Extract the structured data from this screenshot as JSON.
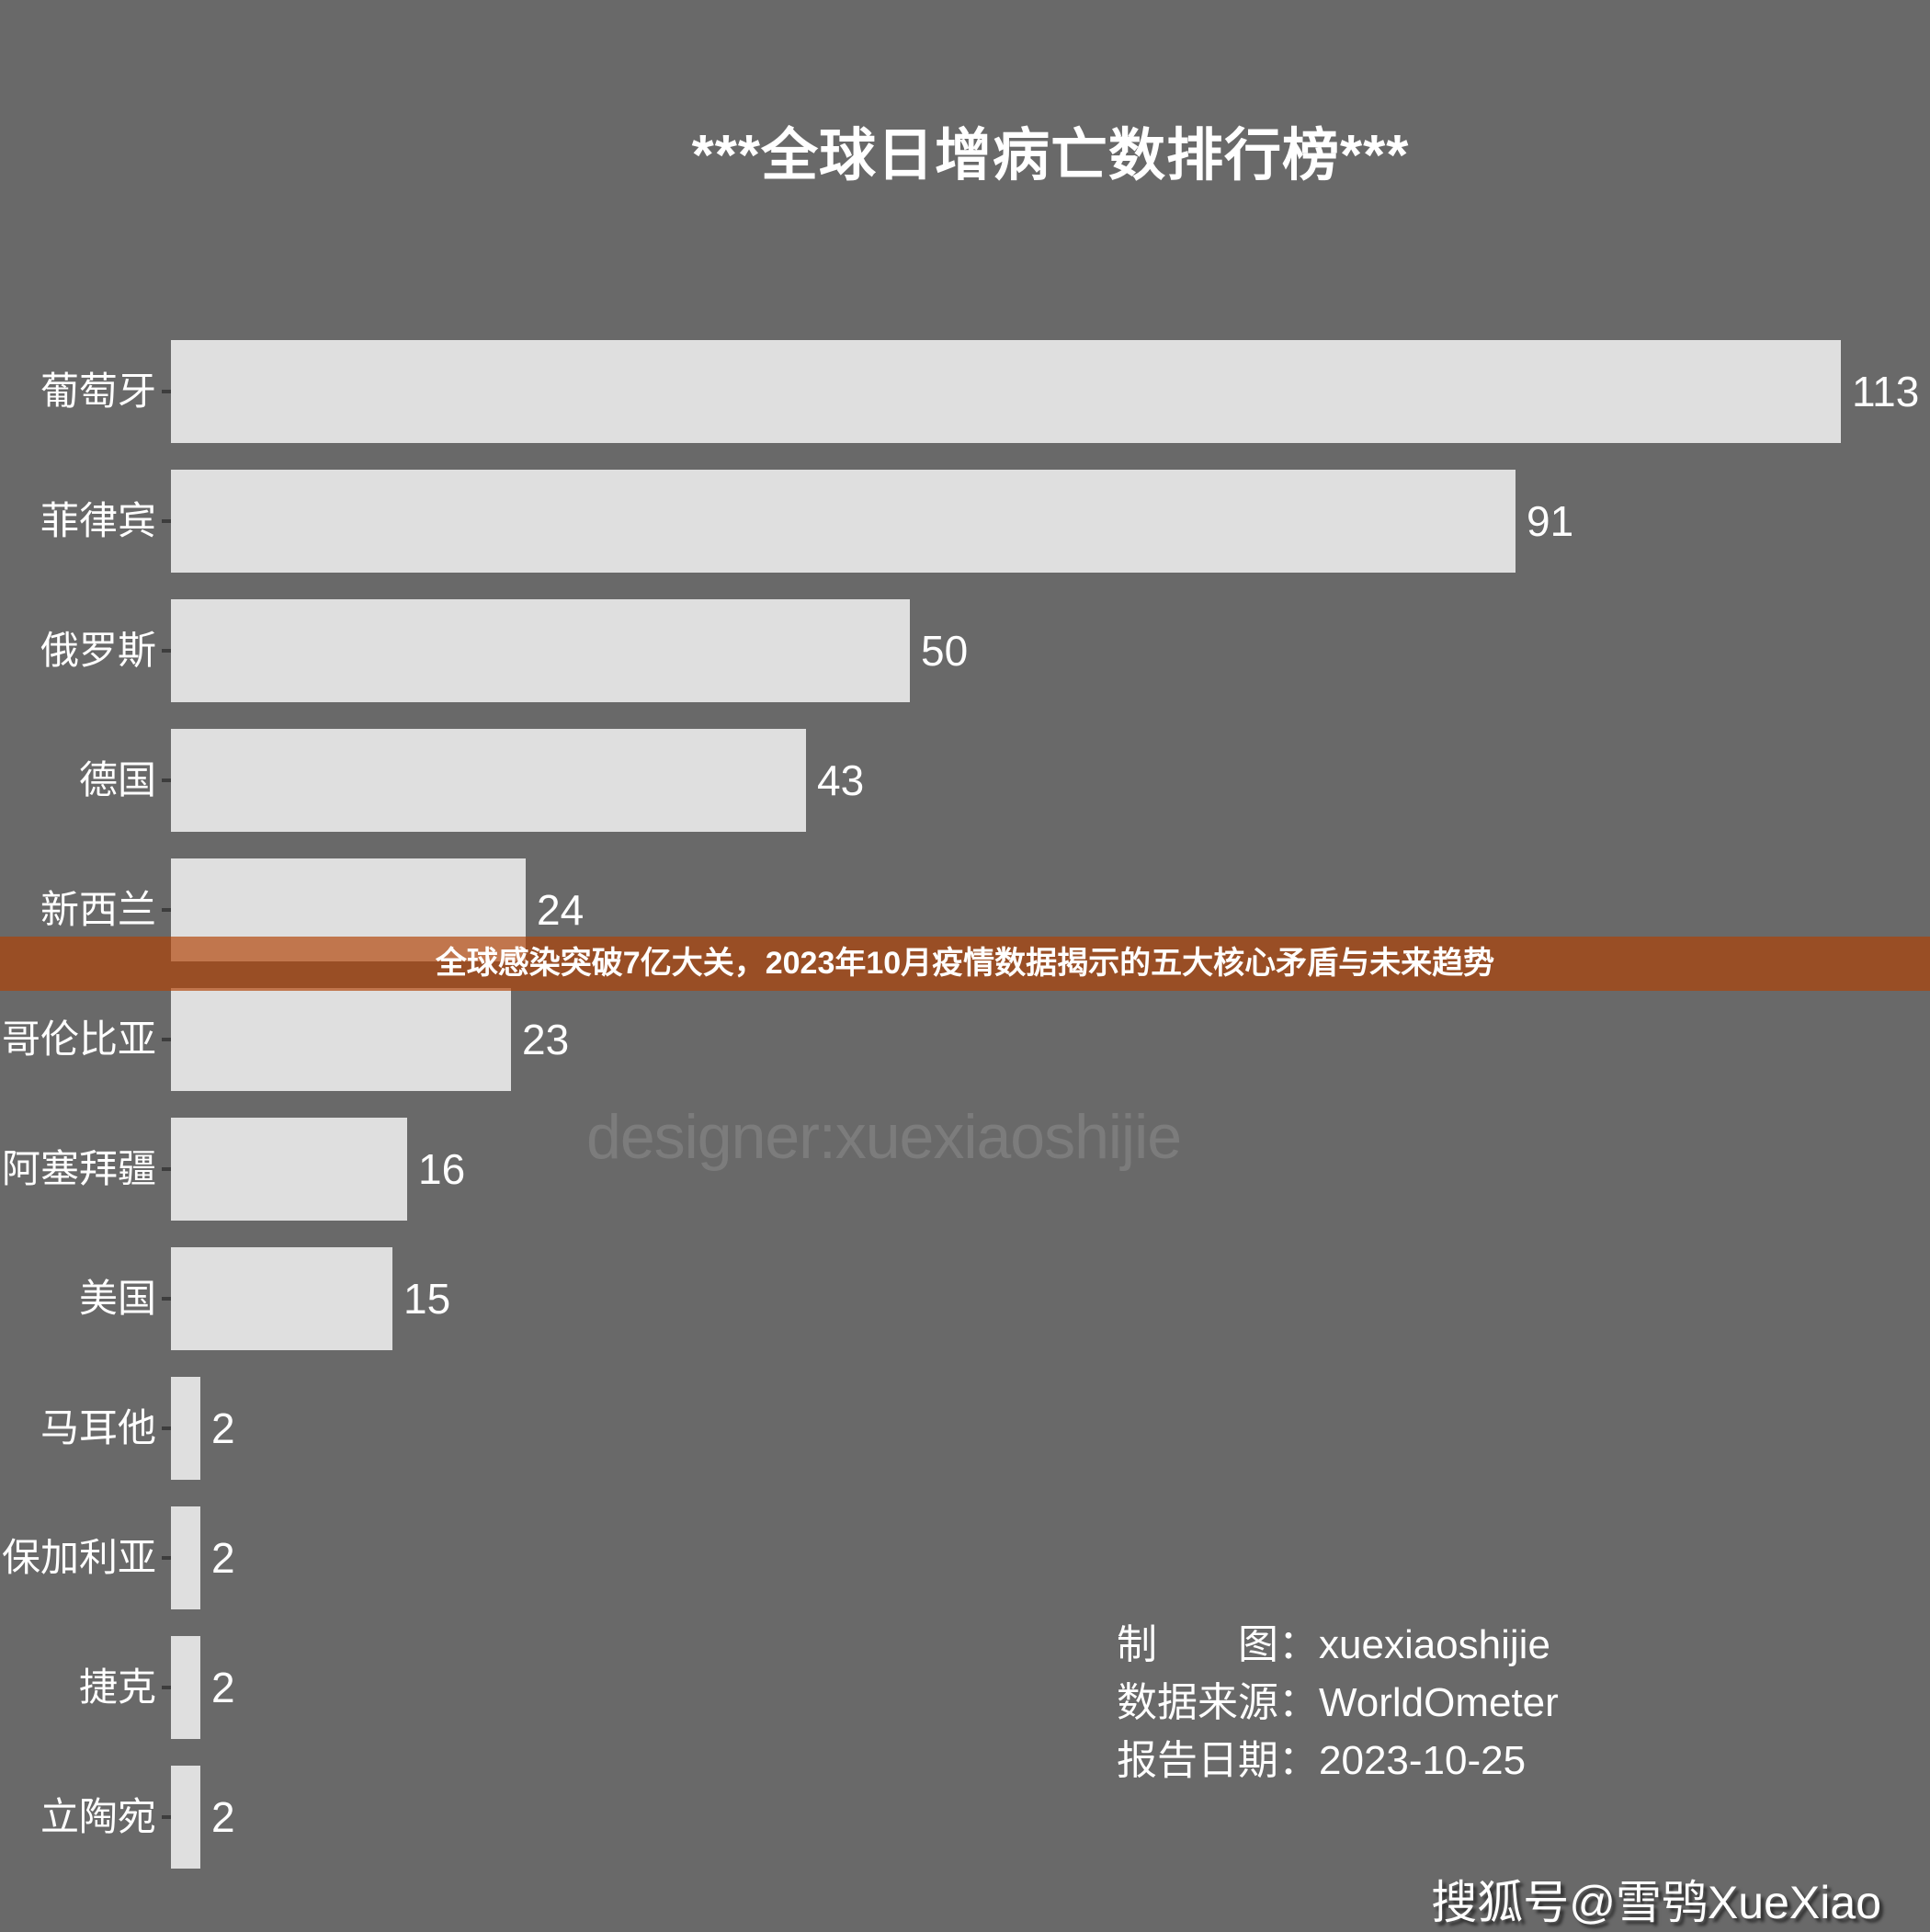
{
  "title": "***全球日增病亡数排行榜***",
  "banner": {
    "text": "全球感染突破7亿大关，2023年10月疫情数据揭示的五大核心矛盾与未来趋势",
    "bg_color": "rgba(178,66,5,0.67)",
    "text_color": "#ffffff"
  },
  "watermark": "designer:xuexiaoshijie",
  "credits": {
    "lines": [
      "制　　图：xuexiaoshijie",
      "数据来源：WorldOmeter",
      "报告日期：2023-10-25"
    ]
  },
  "footer": {
    "sohu_badge": "搜狐号@雪鸮XueXiao"
  },
  "colors": {
    "background": "#696969",
    "bar": "#dfdfdf",
    "bar_value_text": "#ffffff",
    "axis_label_text": "#ffffff",
    "tick": "#3d3d3d",
    "banner_accent": "rgba(178,66,5,0.67)",
    "watermark_text": "#7c7c7c"
  },
  "chart_data": {
    "type": "bar",
    "orientation": "horizontal",
    "title": "***全球日增病亡数排行榜***",
    "xlabel": "",
    "ylabel": "",
    "categories": [
      "葡萄牙",
      "菲律宾",
      "俄罗斯",
      "德国",
      "新西兰",
      "哥伦比亚",
      "阿塞拜疆",
      "美国",
      "马耳他",
      "保加利亚",
      "捷克",
      "立陶宛"
    ],
    "values": [
      113,
      91,
      50,
      43,
      24,
      23,
      16,
      15,
      2,
      2,
      2,
      2
    ],
    "value_labels_shown": true,
    "xlim": [
      0,
      118
    ],
    "grid": false,
    "legend": "none",
    "sorted": "descending"
  }
}
